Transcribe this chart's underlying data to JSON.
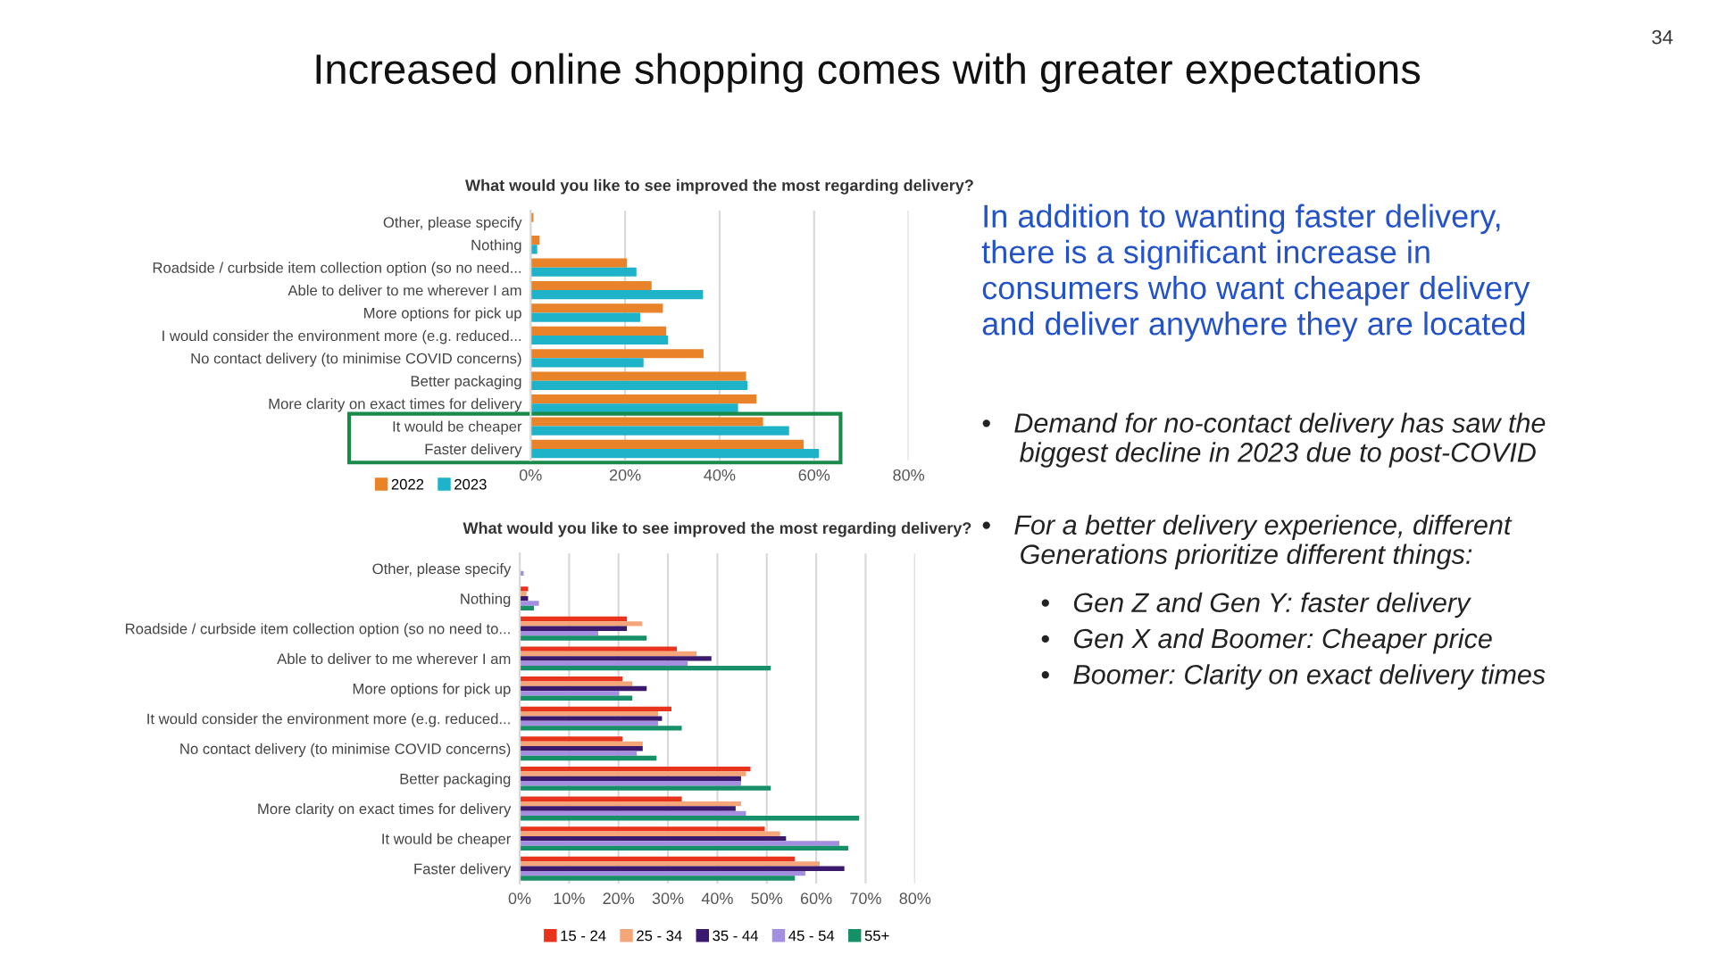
{
  "chart_data": [
    {
      "type": "bar",
      "orientation": "horizontal",
      "title": "What would you like to see improved the most regarding delivery?",
      "categories": [
        "Other, please specify",
        "Nothing",
        "Roadside / curbside item collection option (so no need...",
        "Able to deliver to me wherever I am",
        "More options for pick up",
        "I would consider the environment more (e.g. reduced...",
        "No contact delivery (to minimise COVID concerns)",
        "Better packaging",
        "More clarity on exact times for delivery",
        "It would be cheaper",
        "Faster delivery"
      ],
      "series": [
        {
          "name": "2022",
          "color": "#e8832a",
          "values": [
            0.6,
            1.9,
            20.4,
            25.6,
            28.0,
            28.7,
            36.6,
            45.6,
            47.8,
            49.2,
            57.8
          ]
        },
        {
          "name": "2023",
          "color": "#1fb3c9",
          "values": [
            null,
            1.4,
            22.4,
            36.5,
            23.2,
            29.1,
            23.9,
            45.9,
            43.9,
            54.7,
            61.0
          ]
        }
      ],
      "xlim": [
        0,
        80
      ],
      "xticks": [
        {
          "value": 0,
          "label": "0%"
        },
        {
          "value": 20,
          "label": "20%"
        },
        {
          "value": 40,
          "label": "40%"
        },
        {
          "value": 60,
          "label": "60%"
        },
        {
          "value": 80,
          "label": "80%"
        }
      ],
      "grid": "x",
      "legend": "bottom left"
    },
    {
      "type": "bar",
      "orientation": "horizontal",
      "title": "What would you like to see improved the most regarding delivery?",
      "categories": [
        "Other, please specify",
        "Nothing",
        "Roadside / curbside item collection option (so no need to...",
        "Able to deliver to me wherever I am",
        "More options for pick up",
        "It would consider the environment more (e.g. reduced...",
        "No contact delivery (to minimise COVID concerns)",
        "Better packaging",
        "More clarity on exact times for delivery",
        "It would be cheaper",
        "Faster delivery"
      ],
      "series": [
        {
          "name": "15 - 24",
          "color": "#e8341c",
          "values": [
            null,
            1.7,
            21.7,
            31.8,
            20.8,
            30.7,
            20.8,
            46.7,
            32.8,
            49.6,
            55.7
          ]
        },
        {
          "name": "25 - 34",
          "color": "#f4a67a",
          "values": [
            null,
            1.4,
            24.8,
            35.8,
            22.8,
            28.0,
            24.9,
            45.8,
            44.8,
            52.7,
            60.7
          ]
        },
        {
          "name": "35 - 44",
          "color": "#3b1a6e",
          "values": [
            null,
            1.7,
            21.7,
            38.8,
            25.7,
            28.8,
            24.9,
            44.8,
            43.7,
            53.9,
            65.7
          ]
        },
        {
          "name": "45 - 54",
          "color": "#a48ee0",
          "values": [
            0.8,
            3.9,
            15.9,
            34.0,
            20.1,
            28.0,
            23.7,
            44.8,
            45.8,
            64.7,
            57.8
          ]
        },
        {
          "name": "55+",
          "color": "#17906a",
          "values": [
            null,
            2.9,
            25.7,
            50.8,
            22.8,
            32.8,
            27.7,
            50.8,
            68.7,
            66.5,
            55.7
          ]
        }
      ],
      "xlim": [
        0,
        80
      ],
      "xticks": [
        {
          "value": 0,
          "label": "0%"
        },
        {
          "value": 10,
          "label": "10%"
        },
        {
          "value": 20,
          "label": "20%"
        },
        {
          "value": 30,
          "label": "30%"
        },
        {
          "value": 40,
          "label": "40%"
        },
        {
          "value": 50,
          "label": "50%"
        },
        {
          "value": 60,
          "label": "60%"
        },
        {
          "value": 70,
          "label": "70%"
        },
        {
          "value": 80,
          "label": "80%"
        }
      ],
      "grid": "x",
      "legend": "bottom"
    },
    {
      "type": "other",
      "title": "Increased online shopping comes with greater expectations",
      "subtitle": "In addition to wanting faster delivery,\nthere is a significant increase in\nconsumers who want cheaper delivery\nand deliver anywhere they are located",
      "annotations": [
        "34",
        "•   Demand for no-contact delivery has saw the\n     biggest decline in 2023 due to post-COVID",
        "•   For a better delivery experience, different\n     Generations prioritize different things:",
        "•   Gen Z and Gen Y: faster delivery",
        "•   Gen X and Boomer: Cheaper price",
        "•   Boomer: Clarity on exact delivery times"
      ]
    }
  ]
}
